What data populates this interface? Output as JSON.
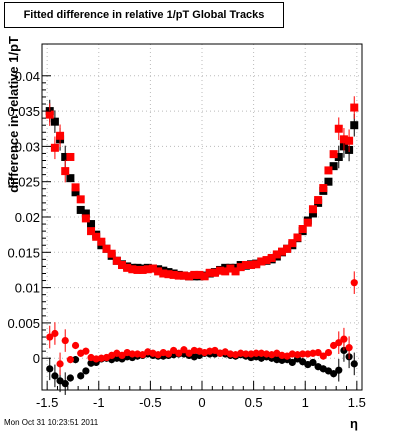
{
  "chart_data": {
    "type": "scatter",
    "title": "Fitted difference in relative 1/pT  Global Tracks",
    "xlabel": "η",
    "ylabel": "difference in relative 1/pT",
    "xlim": [
      -1.55,
      1.55
    ],
    "ylim": [
      -0.0045,
      0.0445
    ],
    "x_ticks": [
      -1.5,
      -1,
      -0.5,
      0,
      0.5,
      1,
      1.5
    ],
    "x_tick_labels": [
      "-1.5",
      "-1",
      "-0.5",
      "0",
      "0.5",
      "1",
      "1.5"
    ],
    "y_ticks": [
      0,
      0.005,
      0.01,
      0.015,
      0.02,
      0.025,
      0.03,
      0.035,
      0.04
    ],
    "y_tick_labels": [
      "0",
      "0.005",
      "0.01",
      "0.015",
      "0.02",
      "0.025",
      "0.03",
      "0.035",
      "0.04"
    ],
    "grid": true,
    "series": [
      {
        "marker": "square",
        "color": "#000000",
        "x": [
          -1.475,
          -1.425,
          -1.375,
          -1.325,
          -1.275,
          -1.225,
          -1.175,
          -1.125,
          -1.075,
          -1.025,
          -0.975,
          -0.925,
          -0.875,
          -0.825,
          -0.775,
          -0.725,
          -0.675,
          -0.625,
          -0.575,
          -0.525,
          -0.475,
          -0.425,
          -0.375,
          -0.325,
          -0.275,
          -0.225,
          -0.175,
          -0.125,
          -0.075,
          -0.025,
          0.025,
          0.075,
          0.125,
          0.175,
          0.225,
          0.275,
          0.325,
          0.375,
          0.425,
          0.475,
          0.525,
          0.575,
          0.625,
          0.675,
          0.725,
          0.775,
          0.825,
          0.875,
          0.925,
          0.975,
          1.025,
          1.075,
          1.125,
          1.175,
          1.225,
          1.275,
          1.325,
          1.375,
          1.425,
          1.475
        ],
        "y": [
          0.035,
          0.0335,
          0.031,
          0.0285,
          0.0255,
          0.0235,
          0.021,
          0.0205,
          0.019,
          0.0175,
          0.016,
          0.0155,
          0.0145,
          0.0138,
          0.0133,
          0.013,
          0.0128,
          0.0128,
          0.0127,
          0.0128,
          0.0127,
          0.0126,
          0.0124,
          0.0122,
          0.012,
          0.0118,
          0.0117,
          0.0116,
          0.0116,
          0.0116,
          0.0117,
          0.012,
          0.0122,
          0.0125,
          0.0128,
          0.0128,
          0.0128,
          0.0132,
          0.0131,
          0.0133,
          0.0134,
          0.0137,
          0.0138,
          0.014,
          0.0144,
          0.015,
          0.0155,
          0.016,
          0.017,
          0.018,
          0.0195,
          0.0205,
          0.022,
          0.0237,
          0.025,
          0.0272,
          0.0285,
          0.03,
          0.0295,
          0.033
        ]
      },
      {
        "marker": "square",
        "color": "#ff0000",
        "x": [
          -1.475,
          -1.425,
          -1.375,
          -1.325,
          -1.275,
          -1.225,
          -1.175,
          -1.125,
          -1.075,
          -1.025,
          -0.975,
          -0.925,
          -0.875,
          -0.825,
          -0.775,
          -0.725,
          -0.675,
          -0.625,
          -0.575,
          -0.525,
          -0.475,
          -0.425,
          -0.375,
          -0.325,
          -0.275,
          -0.225,
          -0.175,
          -0.125,
          -0.075,
          -0.025,
          0.025,
          0.075,
          0.125,
          0.175,
          0.225,
          0.275,
          0.325,
          0.375,
          0.425,
          0.475,
          0.525,
          0.575,
          0.625,
          0.675,
          0.725,
          0.775,
          0.825,
          0.875,
          0.925,
          0.975,
          1.025,
          1.075,
          1.125,
          1.175,
          1.225,
          1.275,
          1.325,
          1.375,
          1.425,
          1.475
        ],
        "y": [
          0.0345,
          0.0298,
          0.0315,
          0.0265,
          0.0285,
          0.0242,
          0.0225,
          0.0198,
          0.018,
          0.0172,
          0.0165,
          0.0155,
          0.0148,
          0.0138,
          0.0132,
          0.0128,
          0.0126,
          0.0125,
          0.0125,
          0.0126,
          0.0127,
          0.0123,
          0.012,
          0.0119,
          0.0118,
          0.0117,
          0.0117,
          0.0116,
          0.0118,
          0.0118,
          0.0116,
          0.0121,
          0.0121,
          0.0124,
          0.0123,
          0.0127,
          0.0123,
          0.0129,
          0.0132,
          0.0132,
          0.0133,
          0.0137,
          0.0139,
          0.0142,
          0.0147,
          0.0151,
          0.0155,
          0.0163,
          0.0171,
          0.0183,
          0.0192,
          0.0211,
          0.0224,
          0.0241,
          0.0266,
          0.0289,
          0.0325,
          0.031,
          0.0308,
          0.0355
        ]
      },
      {
        "marker": "circle",
        "color": "#000000",
        "x": [
          -1.475,
          -1.425,
          -1.375,
          -1.325,
          -1.275,
          -1.225,
          -1.175,
          -1.125,
          -1.075,
          -1.025,
          -0.975,
          -0.925,
          -0.875,
          -0.825,
          -0.775,
          -0.725,
          -0.675,
          -0.625,
          -0.575,
          -0.525,
          -0.475,
          -0.425,
          -0.375,
          -0.325,
          -0.275,
          -0.225,
          -0.175,
          -0.125,
          -0.075,
          -0.025,
          0.025,
          0.075,
          0.125,
          0.175,
          0.225,
          0.275,
          0.325,
          0.375,
          0.425,
          0.475,
          0.525,
          0.575,
          0.625,
          0.675,
          0.725,
          0.775,
          0.825,
          0.875,
          0.925,
          0.975,
          1.025,
          1.075,
          1.125,
          1.175,
          1.225,
          1.275,
          1.325,
          1.375,
          1.425,
          1.475
        ],
        "y": [
          -0.0015,
          -0.0025,
          -0.0032,
          -0.0036,
          -0.0028,
          -0.0002,
          -0.0025,
          -0.0018,
          -0.0007,
          -0.0006,
          -0.0001,
          0.0,
          -0.0002,
          0.0,
          -0.0001,
          0.0002,
          0.0001,
          0.0003,
          0.0004,
          0.0006,
          0.0004,
          0.0003,
          0.0003,
          0.0004,
          0.0005,
          0.0006,
          0.0006,
          0.0004,
          0.0002,
          0.0004,
          0.0007,
          0.0006,
          0.0006,
          0.0007,
          0.0006,
          0.0004,
          0.0003,
          0.0005,
          0.0003,
          0.0001,
          0.0002,
          0.0,
          0.0002,
          0.0,
          -0.0002,
          -0.0003,
          -0.0002,
          -0.0006,
          -0.0001,
          -0.0005,
          -0.0009,
          -0.0006,
          -0.0012,
          -0.0015,
          -0.0018,
          -0.0022,
          -0.0017,
          0.0011,
          0.0002,
          -0.0008
        ]
      },
      {
        "marker": "circle",
        "color": "#ff0000",
        "x": [
          -1.475,
          -1.425,
          -1.375,
          -1.325,
          -1.275,
          -1.225,
          -1.175,
          -1.125,
          -1.075,
          -1.025,
          -0.975,
          -0.925,
          -0.875,
          -0.825,
          -0.775,
          -0.725,
          -0.675,
          -0.625,
          -0.575,
          -0.525,
          -0.475,
          -0.425,
          -0.375,
          -0.325,
          -0.275,
          -0.225,
          -0.175,
          -0.125,
          -0.075,
          -0.025,
          0.025,
          0.075,
          0.125,
          0.175,
          0.225,
          0.275,
          0.325,
          0.375,
          0.425,
          0.475,
          0.525,
          0.575,
          0.625,
          0.675,
          0.725,
          0.775,
          0.825,
          0.875,
          0.925,
          0.975,
          1.025,
          1.075,
          1.125,
          1.175,
          1.225,
          1.275,
          1.325,
          1.375,
          1.425,
          1.475
        ],
        "y": [
          0.003,
          0.0035,
          -0.0008,
          0.0025,
          -0.0002,
          0.0018,
          0.0007,
          0.001,
          0.0001,
          -0.0001,
          0.0,
          0.0001,
          0.0004,
          0.0007,
          0.0004,
          0.0008,
          0.0006,
          0.0006,
          0.0005,
          0.0009,
          0.0007,
          0.0005,
          0.0008,
          0.0006,
          0.0011,
          0.0007,
          0.0012,
          0.0007,
          0.0011,
          0.001,
          0.0008,
          0.001,
          0.0011,
          0.0007,
          0.0009,
          0.0006,
          0.0005,
          0.0007,
          0.0006,
          0.0006,
          0.0007,
          0.0007,
          0.0006,
          0.0005,
          0.0007,
          0.0004,
          0.0003,
          0.0006,
          0.0005,
          0.0006,
          0.0006,
          0.0007,
          0.0008,
          0.0003,
          0.0008,
          0.0018,
          0.0022,
          0.0027,
          0.0015,
          0.0107
        ]
      }
    ]
  },
  "footer": {
    "timestamp": "Mon Oct 31 10:23:51 2011"
  },
  "colors": {
    "black_series": "#000000",
    "red_series": "#ff0000",
    "grid": "#bbbbbb",
    "frame": "#000000"
  }
}
